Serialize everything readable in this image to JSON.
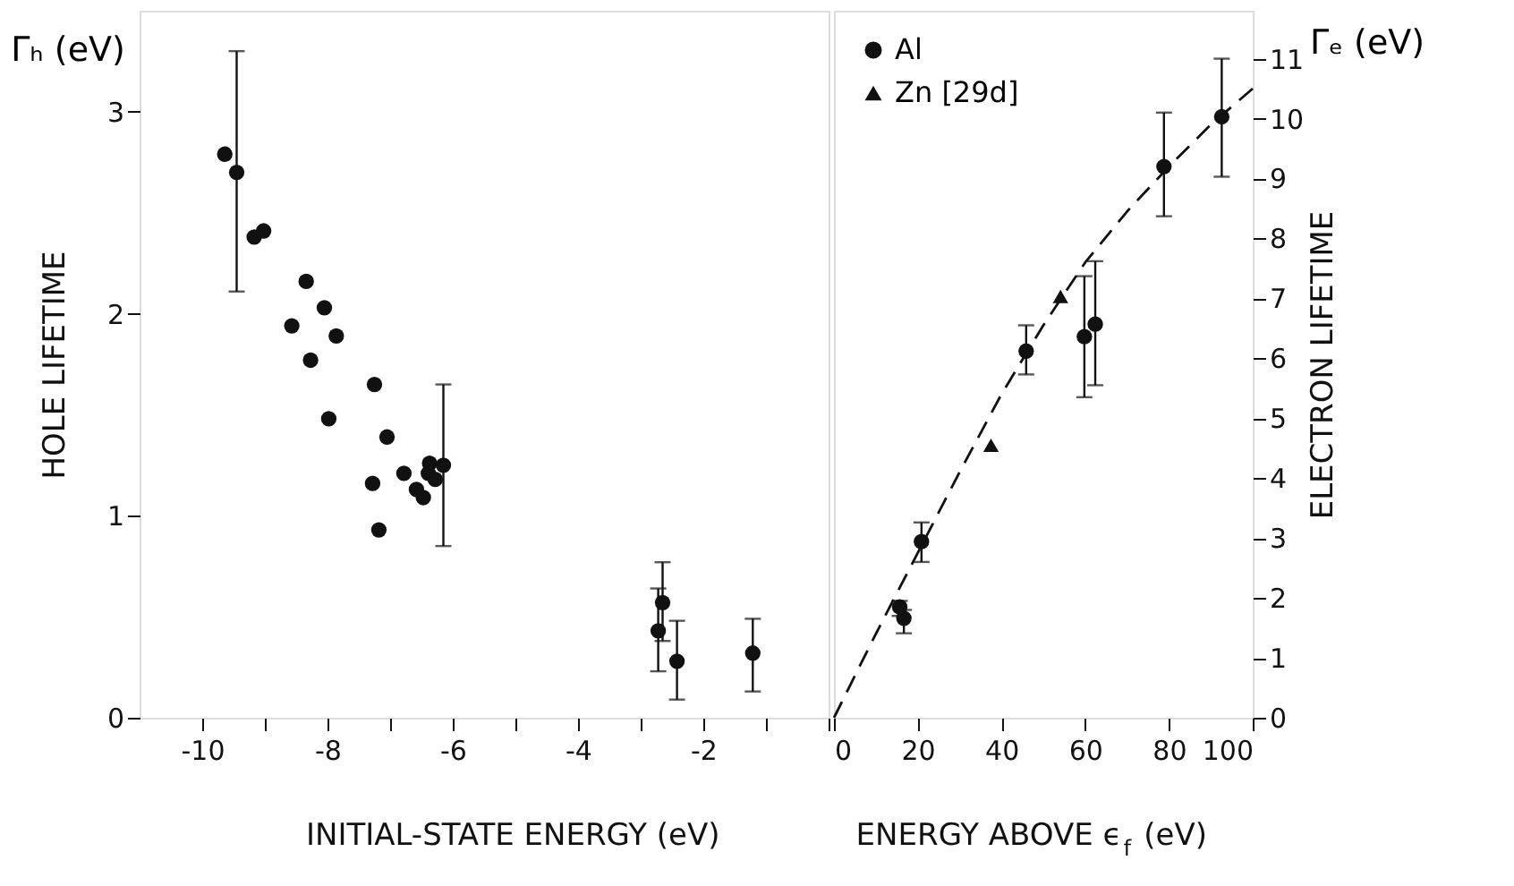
{
  "chart_data": [
    {
      "type": "scatter",
      "xlabel": "INITIAL-STATE ENERGY (eV)",
      "ylabel": "HOLE LIFETIME",
      "annotations": [
        "Γₕ (eV)"
      ],
      "xlim": [
        -11,
        0
      ],
      "xticks": [
        -10,
        {
          "value": -9,
          "label": null
        },
        -8,
        {
          "value": -7,
          "label": null
        },
        -6,
        {
          "value": -5,
          "label": null
        },
        -4,
        {
          "value": -3,
          "label": null
        },
        -2,
        {
          "value": -1,
          "label": null
        },
        {
          "value": 0,
          "label": null
        }
      ],
      "ylim": [
        0,
        3.5
      ],
      "yticks": [
        0,
        1,
        2,
        3
      ],
      "grid": false,
      "legend": false,
      "series": [
        {
          "color": "#111111",
          "marker": "circle",
          "x": [
            -9.64,
            -9.45,
            -9.17,
            -9.02,
            -8.34,
            -8.57,
            -8.27,
            -8.05,
            -7.86,
            -7.98,
            -7.25,
            -7.05,
            -7.28,
            -7.18,
            -6.78,
            -6.58,
            -6.47,
            -6.37,
            -6.39,
            -6.28,
            -6.15,
            -2.72,
            -2.65,
            -2.42,
            -1.21
          ],
          "values": [
            2.79,
            2.7,
            2.38,
            2.41,
            2.16,
            1.94,
            1.77,
            2.03,
            1.89,
            1.48,
            1.65,
            1.39,
            1.16,
            0.93,
            1.21,
            1.13,
            1.09,
            1.26,
            1.21,
            1.18,
            1.25,
            0.43,
            0.57,
            0.28,
            0.32
          ],
          "errors": [
            null,
            [
              2.11,
              3.3
            ],
            null,
            null,
            null,
            null,
            null,
            null,
            null,
            null,
            null,
            null,
            null,
            null,
            null,
            null,
            null,
            null,
            null,
            null,
            [
              0.85,
              1.65
            ],
            [
              0.23,
              0.64
            ],
            [
              0.38,
              0.77
            ],
            [
              0.09,
              0.48
            ],
            [
              0.13,
              0.49
            ]
          ]
        }
      ]
    },
    {
      "type": "scatter",
      "xlabel": "ENERGY ABOVE ϵ$_{f}$ (eV)",
      "y2label": "ELECTRON LIFETIME",
      "annotations": [
        "Γₑ (eV)"
      ],
      "xlim": [
        0,
        100
      ],
      "xticks": [
        0,
        20,
        40,
        60,
        80,
        100
      ],
      "y2lim": [
        0,
        11.8
      ],
      "y2ticks": [
        0,
        1,
        2,
        3,
        4,
        5,
        6,
        7,
        8,
        9,
        10,
        11
      ],
      "grid": false,
      "legend": "top left",
      "series": [
        {
          "name": "Al",
          "color": "#111111",
          "marker": "circle",
          "axis": "y2",
          "x": [
            15.7,
            16.7,
            20.9,
            45.9,
            59.8,
            62.4,
            78.8,
            92.6
          ],
          "values": [
            1.85,
            1.66,
            2.94,
            6.12,
            6.36,
            6.57,
            9.2,
            10.03
          ],
          "errors": [
            [
              1.7,
              1.95
            ],
            [
              1.41,
              1.8
            ],
            [
              2.6,
              3.26
            ],
            [
              5.73,
              6.55
            ],
            [
              5.35,
              7.37
            ],
            [
              5.55,
              7.62
            ],
            [
              8.37,
              10.1
            ],
            [
              9.03,
              11.0
            ]
          ]
        },
        {
          "name": "Zn [29d]",
          "color": "#111111",
          "marker": "triangle",
          "axis": "y2",
          "x": [
            37.5,
            54.1
          ],
          "values": [
            4.55,
            7.03
          ]
        },
        {
          "type": "line",
          "color": "#111111",
          "marker": "none",
          "line_style": "dashed",
          "axis": "y2",
          "x": [
            0,
            10,
            20,
            30,
            40,
            50,
            60,
            70,
            80,
            90,
            100
          ],
          "values": [
            0,
            1.4,
            2.75,
            4.1,
            5.4,
            6.55,
            7.6,
            8.45,
            9.2,
            9.9,
            10.5
          ]
        }
      ]
    }
  ]
}
